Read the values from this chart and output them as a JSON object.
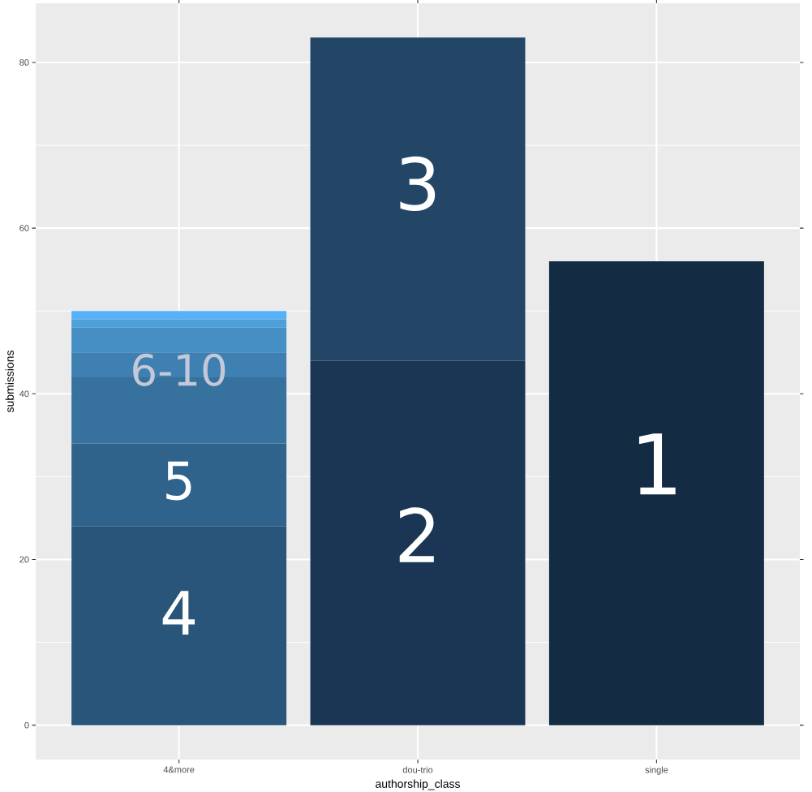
{
  "chart_data": {
    "type": "bar",
    "stacked": true,
    "xlabel": "authorship_class",
    "ylabel": "submissions",
    "categories": [
      "4&more",
      "dou-trio",
      "single"
    ],
    "series": [
      {
        "color": "#132B43",
        "values": [
          null,
          null,
          56
        ]
      },
      {
        "color": "#1B3655",
        "values": [
          null,
          44,
          null
        ]
      },
      {
        "color": "#234667",
        "values": [
          null,
          39,
          null
        ]
      },
      {
        "color": "#285579",
        "values": [
          24,
          null,
          null
        ]
      },
      {
        "color": "#30638C",
        "values": [
          10,
          null,
          null
        ]
      },
      {
        "color": "#37719E",
        "values": [
          8,
          null,
          null
        ]
      },
      {
        "color": "#3E80B1",
        "values": [
          3,
          null,
          null
        ]
      },
      {
        "color": "#458FC4",
        "values": [
          3,
          null,
          null
        ]
      },
      {
        "color": "#4DA0DA",
        "values": [
          1,
          null,
          null
        ]
      },
      {
        "color": "#56B1F7",
        "values": [
          1,
          null,
          null
        ]
      }
    ],
    "ylim": [
      -4.15,
      87.15
    ],
    "yticks": [
      0,
      20,
      40,
      60,
      80
    ],
    "grid": true,
    "annotations": [
      "4",
      "5",
      "6-10",
      "2",
      "3",
      "1"
    ]
  }
}
